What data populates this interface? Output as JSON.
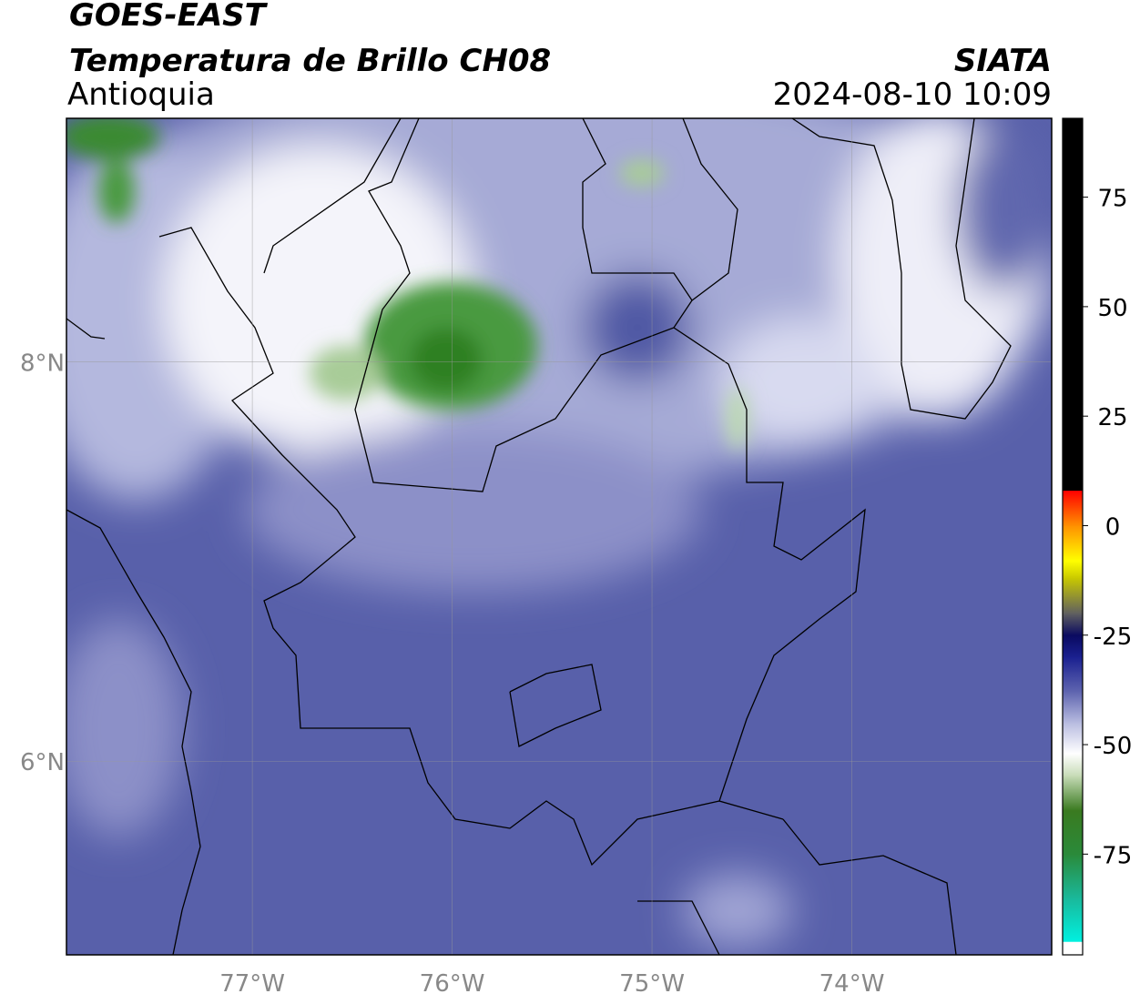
{
  "title": "GOES-EAST",
  "subtitle": "Temperatura de Brillo CH08",
  "region": "Antioquia",
  "source": "SIATA",
  "datetime": "2024-08-10 10:09",
  "map": {
    "xlim": [
      -77.93,
      -73.0
    ],
    "ylim": [
      5.03,
      9.22
    ],
    "xticks": [
      {
        "value": -77,
        "label": "77°W"
      },
      {
        "value": -76,
        "label": "76°W"
      },
      {
        "value": -75,
        "label": "75°W"
      },
      {
        "value": -74,
        "label": "74°W"
      }
    ],
    "yticks": [
      {
        "value": 8,
        "label": "8°N"
      },
      {
        "value": 6,
        "label": "6°N"
      }
    ],
    "grid": true
  },
  "colorbar": {
    "lim": [
      -98,
      93
    ],
    "ticks": [
      75,
      50,
      25,
      0,
      -25,
      -50,
      -75
    ],
    "stops": [
      {
        "value": -98,
        "color": "#ffffff"
      },
      {
        "value": -95,
        "color": "#ffffff"
      },
      {
        "value": -94.9,
        "color": "#00f0e0"
      },
      {
        "value": -85,
        "color": "#1ab89a"
      },
      {
        "value": -75,
        "color": "#2a8a3a"
      },
      {
        "value": -65,
        "color": "#3a7a20"
      },
      {
        "value": -57,
        "color": "#c8dcb8"
      },
      {
        "value": -52,
        "color": "#ffffff"
      },
      {
        "value": -45,
        "color": "#b8bce0"
      },
      {
        "value": -38,
        "color": "#6066b0"
      },
      {
        "value": -30,
        "color": "#1a2090"
      },
      {
        "value": -25,
        "color": "#0a0a60"
      },
      {
        "value": -20,
        "color": "#606060"
      },
      {
        "value": -12,
        "color": "#c8c800"
      },
      {
        "value": -8,
        "color": "#ffff00"
      },
      {
        "value": 0,
        "color": "#ff9000"
      },
      {
        "value": 8,
        "color": "#ff0000"
      },
      {
        "value": 8.1,
        "color": "#000000"
      },
      {
        "value": 93,
        "color": "#000000"
      }
    ]
  }
}
